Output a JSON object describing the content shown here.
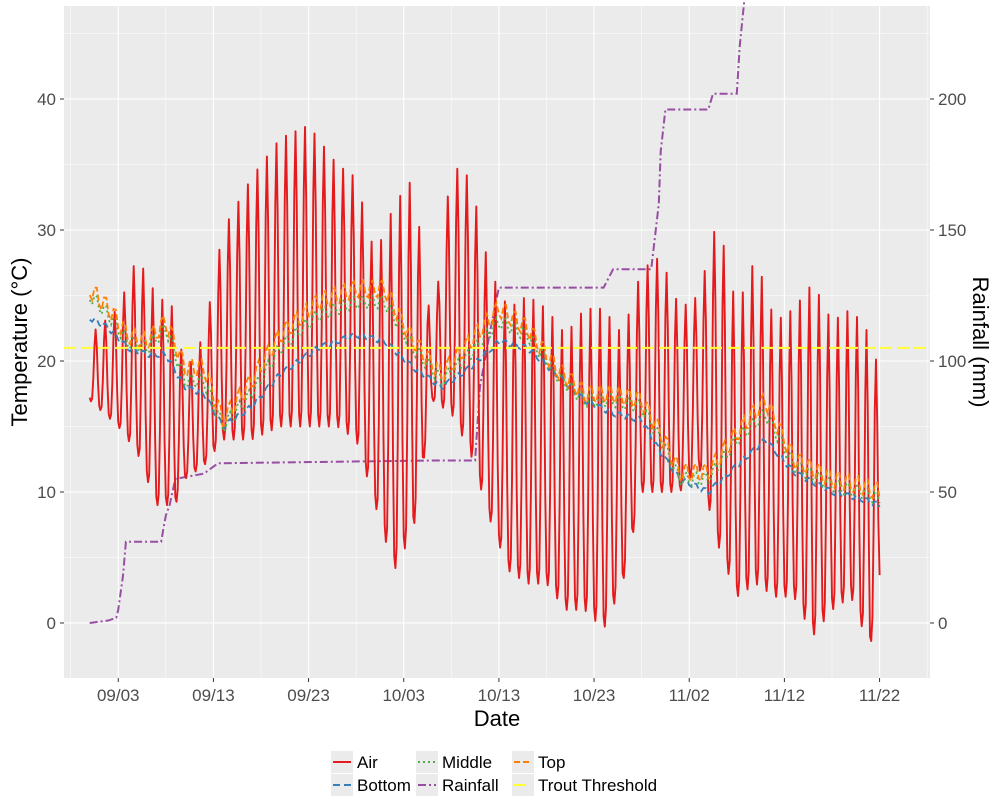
{
  "chart_data": {
    "type": "line",
    "xlabel": "Date",
    "ylabel_left": "Temperature (°C)",
    "ylabel_right": "Rainfall (mm)",
    "x_ticks": [
      "09/03",
      "09/13",
      "09/23",
      "10/03",
      "10/13",
      "10/23",
      "11/02",
      "11/12",
      "11/22"
    ],
    "x_tick_days": [
      3,
      13,
      23,
      33,
      43,
      53,
      63,
      73,
      83
    ],
    "x_domain_days": [
      -2.7,
      88.3
    ],
    "x_day_zero_note": "08/31",
    "y_left_ticks": [
      0,
      10,
      20,
      30,
      40
    ],
    "y_left_range": [
      -4.2,
      47.1
    ],
    "y_right_ticks": [
      0,
      50,
      100,
      150,
      200
    ],
    "y_right_range": [
      -21,
      235.5
    ],
    "grid": true,
    "legend_position": "bottom",
    "colors": {
      "air": "#e41a1c",
      "bottom": "#377eb8",
      "middle": "#4daf4a",
      "rainfall": "#984ea3",
      "top": "#ff7f00",
      "threshold": "#ffff33",
      "panel": "#ebebeb",
      "grid": "#ffffff"
    },
    "trout_threshold": 21,
    "series": [
      {
        "name": "Air",
        "kind": "diurnal",
        "x": [
          0,
          3,
          5,
          7,
          9,
          10,
          12,
          14,
          17,
          20,
          23,
          26,
          28,
          30,
          32,
          34,
          36,
          38,
          40,
          42,
          44,
          46,
          48,
          50,
          52,
          54,
          56,
          58,
          60,
          62,
          64,
          66,
          68,
          70,
          72,
          74,
          76,
          78,
          80,
          82,
          83
        ],
        "max": [
          22,
          24,
          28,
          25,
          24,
          19,
          22,
          30,
          34,
          37,
          38,
          35,
          34,
          28,
          32,
          34,
          22,
          35,
          34,
          27,
          24,
          25,
          24,
          22,
          24,
          24,
          22,
          27,
          28,
          24,
          25,
          31,
          24,
          28,
          23,
          24,
          26,
          23,
          24,
          22,
          19
        ],
        "min": [
          17,
          15,
          13,
          9,
          9,
          11,
          12,
          14,
          14,
          15,
          15,
          15,
          14,
          9,
          4,
          7,
          17,
          16,
          13,
          8,
          4,
          3,
          3,
          1,
          1,
          -0.5,
          3,
          10,
          10,
          10,
          12,
          6,
          2,
          3,
          2,
          2,
          -1,
          1,
          2,
          -2,
          3
        ]
      },
      {
        "name": "Bottom",
        "x": [
          0,
          2,
          4,
          6,
          8,
          10,
          12,
          14,
          17,
          20,
          24,
          28,
          31,
          34,
          37,
          40,
          43,
          46,
          49,
          52,
          55,
          58,
          60,
          62,
          65,
          68,
          71,
          74,
          78,
          81,
          83
        ],
        "y": [
          23.3,
          22.5,
          21,
          20.5,
          20.5,
          18,
          17.5,
          15,
          16.5,
          19,
          21,
          22,
          21.5,
          19.5,
          18,
          19.5,
          21.5,
          21,
          19,
          17,
          16,
          15.5,
          13,
          11,
          10,
          12,
          14,
          11.5,
          10,
          9.5,
          9
        ]
      },
      {
        "name": "Middle",
        "x": [
          0,
          2,
          4,
          6,
          8,
          10,
          12,
          14,
          17,
          20,
          24,
          28,
          31,
          34,
          37,
          40,
          43,
          46,
          49,
          52,
          55,
          58,
          60,
          62,
          65,
          68,
          71,
          74,
          78,
          81,
          83
        ],
        "y": [
          25,
          23.5,
          21.5,
          21,
          22.5,
          18.5,
          18.5,
          15,
          17.5,
          21,
          23.5,
          24.5,
          24.5,
          21,
          18.5,
          20.5,
          23,
          22,
          19,
          17,
          17,
          16.5,
          14,
          11,
          11,
          14,
          16,
          12,
          10.5,
          10,
          9.5
        ]
      },
      {
        "name": "Top",
        "x": [
          0,
          2,
          4,
          6,
          8,
          10,
          12,
          14,
          17,
          20,
          24,
          28,
          31,
          34,
          37,
          40,
          43,
          46,
          49,
          52,
          55,
          58,
          60,
          62,
          65,
          68,
          71,
          74,
          78,
          81,
          83
        ],
        "y": [
          25.5,
          24,
          22,
          21.5,
          23,
          19.5,
          19.5,
          15.5,
          18.5,
          22,
          24.5,
          25.5,
          25.5,
          21.5,
          19,
          21.5,
          24,
          22.5,
          19.5,
          17.5,
          17.5,
          17,
          14.5,
          11.5,
          11.5,
          14.5,
          17,
          12.5,
          11,
          10.5,
          10
        ]
      },
      {
        "name": "Rainfall",
        "axis": "right",
        "x": [
          0,
          2,
          2.8,
          3,
          3.5,
          3.8,
          7.5,
          8,
          8.4,
          9,
          12,
          13.5,
          14,
          36,
          40.5,
          41,
          42,
          43,
          50,
          53,
          54,
          55,
          58,
          59,
          59.8,
          60,
          60.5,
          65,
          65.5,
          68,
          68.3,
          68.8,
          70,
          80,
          82,
          83
        ],
        "y": [
          0,
          1,
          2,
          5,
          18,
          31,
          31,
          41,
          45,
          55,
          57,
          61,
          61,
          62,
          62,
          90,
          110,
          128,
          128,
          128,
          128,
          135,
          135,
          135,
          160,
          180,
          196,
          196,
          202,
          202,
          220,
          238,
          240,
          243,
          244,
          244
        ]
      },
      {
        "name": "Trout Threshold",
        "axis": "left",
        "x": [
          -2.7,
          88.3
        ],
        "y": [
          21,
          21
        ]
      }
    ]
  }
}
